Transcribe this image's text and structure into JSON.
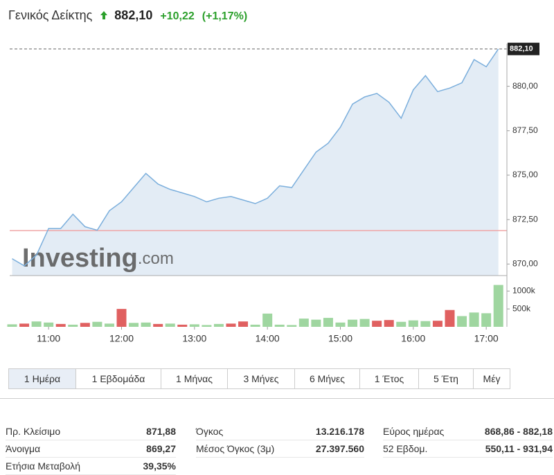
{
  "header": {
    "title": "Γενικός Δείκτης",
    "price": "882,10",
    "change": "+10,22",
    "change_pct": "(+1,17%)"
  },
  "chart_data": {
    "type": "line",
    "x": [
      "10:30",
      "10:40",
      "10:50",
      "11:00",
      "11:10",
      "11:20",
      "11:30",
      "11:40",
      "11:50",
      "12:00",
      "12:10",
      "12:20",
      "12:30",
      "12:40",
      "12:50",
      "13:00",
      "13:10",
      "13:20",
      "13:30",
      "13:40",
      "13:50",
      "14:00",
      "14:10",
      "14:20",
      "14:30",
      "14:40",
      "14:50",
      "15:00",
      "15:10",
      "15:20",
      "15:30",
      "15:40",
      "15:50",
      "16:00",
      "16:10",
      "16:20",
      "16:30",
      "16:40",
      "16:50",
      "17:00",
      "17:10"
    ],
    "values": [
      870.3,
      869.9,
      870.5,
      872.0,
      872.0,
      872.8,
      872.1,
      871.9,
      873.0,
      873.5,
      874.3,
      875.1,
      874.5,
      874.2,
      874.0,
      873.8,
      873.5,
      873.7,
      873.8,
      873.6,
      873.4,
      873.7,
      874.4,
      874.3,
      875.3,
      876.3,
      876.8,
      877.7,
      879.0,
      879.4,
      879.6,
      879.1,
      878.2,
      879.8,
      880.6,
      879.7,
      879.9,
      880.2,
      881.5,
      881.1,
      882.1
    ],
    "color": "#7aaedc",
    "fill": "#e3ecf5",
    "xlim": [
      "10:28",
      "17:17"
    ],
    "xticks": [
      "11:00",
      "12:00",
      "13:00",
      "14:00",
      "15:00",
      "16:00",
      "17:00"
    ],
    "ylim": [
      869.35,
      882.4
    ],
    "yticks": [
      {
        "value": 870,
        "label": "870,00"
      },
      {
        "value": 872.5,
        "label": "872,50"
      },
      {
        "value": 875,
        "label": "875,00"
      },
      {
        "value": 877.5,
        "label": "877,50"
      },
      {
        "value": 880,
        "label": "880,00"
      }
    ],
    "reference_line": 871.88,
    "reference_color": "#f0a5a5",
    "watermark": [
      "Investing",
      ".com"
    ],
    "volume": {
      "type": "bar",
      "values": [
        70000,
        90000,
        150000,
        120000,
        80000,
        60000,
        110000,
        140000,
        90000,
        500000,
        110000,
        120000,
        80000,
        90000,
        60000,
        70000,
        50000,
        80000,
        90000,
        150000,
        60000,
        370000,
        60000,
        50000,
        230000,
        200000,
        250000,
        120000,
        200000,
        220000,
        170000,
        190000,
        140000,
        180000,
        160000,
        170000,
        470000,
        300000,
        400000,
        380000,
        1170000
      ],
      "colors": [
        "#9fd6a0",
        "#e06060",
        "#9fd6a0",
        "#9fd6a0",
        "#e06060",
        "#9fd6a0",
        "#e06060",
        "#9fd6a0",
        "#9fd6a0",
        "#e06060",
        "#9fd6a0",
        "#9fd6a0",
        "#e06060",
        "#9fd6a0",
        "#e06060",
        "#9fd6a0",
        "#9fd6a0",
        "#9fd6a0",
        "#e06060",
        "#e06060",
        "#9fd6a0",
        "#9fd6a0",
        "#9fd6a0",
        "#9fd6a0",
        "#9fd6a0",
        "#9fd6a0",
        "#9fd6a0",
        "#9fd6a0",
        "#9fd6a0",
        "#9fd6a0",
        "#e06060",
        "#e06060",
        "#9fd6a0",
        "#9fd6a0",
        "#9fd6a0",
        "#e06060",
        "#e06060",
        "#9fd6a0",
        "#9fd6a0",
        "#9fd6a0",
        "#9fd6a0"
      ],
      "ylim": [
        0,
        1200000
      ],
      "yticks": [
        {
          "value": 500000,
          "label": "500k"
        },
        {
          "value": 1000000,
          "label": "1000k"
        }
      ]
    }
  },
  "ranges": [
    "1 Ημέρα",
    "1 Εβδομάδα",
    "1 Μήνας",
    "3 Μήνες",
    "6 Μήνες",
    "1 Έτος",
    "5 Έτη",
    "Μέγ"
  ],
  "stats": [
    [
      [
        "Πρ. Κλείσιμο",
        "871,88"
      ],
      [
        "Άνοιγμα",
        "869,27"
      ],
      [
        "Ετήσια Μεταβολή",
        "39,35%"
      ]
    ],
    [
      [
        "Όγκος",
        "13.216.178"
      ],
      [
        "Μέσος Όγκος (3μ)",
        "27.397.560"
      ]
    ],
    [
      [
        "Εύρος ημέρας",
        "868,86 - 882,18"
      ],
      [
        "52 Εβδομ.",
        "550,11 - 931,94"
      ]
    ]
  ]
}
